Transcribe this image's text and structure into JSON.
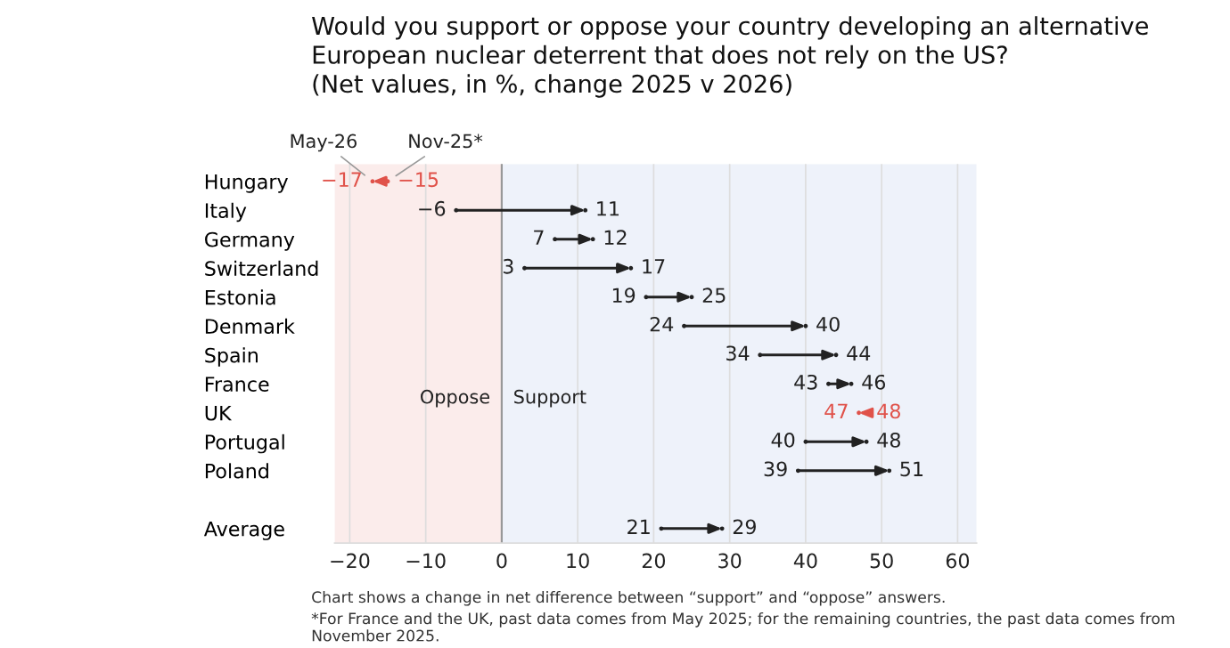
{
  "chart_data": {
    "type": "scatter",
    "orientation": "horizontal",
    "title": "Would you support or oppose your country developing an alternative\nEuropean nuclear deterrent that does not rely on the US?\n(Net values, in %, change 2025 v 2026)",
    "categories": [
      "Hungary",
      "Italy",
      "Germany",
      "Switzerland",
      "Estonia",
      "Denmark",
      "Spain",
      "France",
      "UK",
      "Portugal",
      "Poland",
      null,
      "Average"
    ],
    "series": [
      {
        "name": "Nov-25*",
        "color": "#222222",
        "values": [
          -15,
          -6,
          7,
          3,
          19,
          24,
          34,
          43,
          48,
          40,
          39,
          null,
          21
        ],
        "colors": [
          "#e0524a",
          "#222222",
          "#222222",
          "#222222",
          "#222222",
          "#222222",
          "#222222",
          "#222222",
          "#e0524a",
          "#222222",
          "#222222",
          null,
          "#222222"
        ]
      },
      {
        "name": "May-26",
        "color": "#222222",
        "values": [
          -17,
          11,
          12,
          17,
          25,
          40,
          44,
          46,
          47,
          48,
          51,
          null,
          29
        ],
        "colors": [
          "#e0524a",
          "#222222",
          "#222222",
          "#222222",
          "#222222",
          "#222222",
          "#222222",
          "#222222",
          "#e0524a",
          "#222222",
          "#222222",
          null,
          "#222222"
        ]
      }
    ],
    "xlim": [
      -22,
      62.5
    ],
    "xticks": [
      {
        "value": -20,
        "label": "−20"
      },
      {
        "value": -10,
        "label": "−10"
      },
      0,
      10,
      20,
      30,
      40,
      50,
      60
    ],
    "grid": "x",
    "marker": "circle",
    "data_labels": true,
    "ref_lines": [
      {
        "axis": "x",
        "value": 0,
        "color": "#999999"
      }
    ],
    "bands": [
      {
        "axis": "x",
        "from": -22,
        "to": 0,
        "label": "Oppose",
        "color": "#fbeceb"
      },
      {
        "axis": "x",
        "from": 0,
        "to": 62.5,
        "label": "Support",
        "color": "#eef2fa"
      }
    ],
    "annotations": [
      "Chart shows a change in net difference between “support” and “oppose” answers.",
      "*For France and the UK, past data comes from May 2025; for the remaining countries, the past data comes from November 2025."
    ]
  }
}
